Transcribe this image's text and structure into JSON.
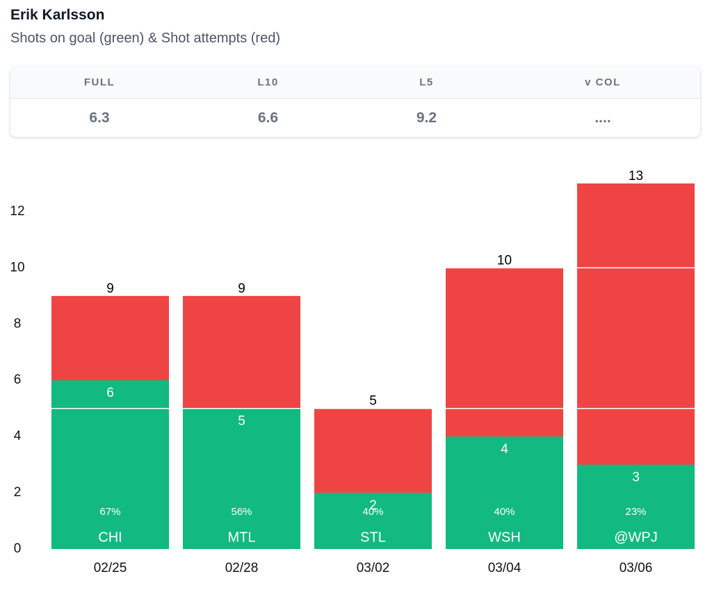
{
  "header": {
    "title": "Erik Karlsson",
    "subtitle": "Shots on goal (green) & Shot attempts (red)"
  },
  "stats": {
    "columns": [
      "FULL",
      "L10",
      "L5",
      "v COL"
    ],
    "values": [
      "6.3",
      "6.6",
      "9.2",
      "...."
    ]
  },
  "chart_data": {
    "type": "bar",
    "categories": [
      "02/25",
      "02/28",
      "03/02",
      "03/04",
      "03/06"
    ],
    "opponents": [
      "CHI",
      "MTL",
      "STL",
      "WSH",
      "@WPJ"
    ],
    "attempts": {
      "color": "#ef4444",
      "values": [
        9,
        9,
        5,
        10,
        13
      ]
    },
    "shots": {
      "color": "#12b981",
      "values": [
        6,
        5,
        2,
        4,
        3
      ]
    },
    "shot_pct": {
      "values": [
        67,
        56,
        40,
        40,
        23
      ],
      "value_labels": [
        "67%",
        "56%",
        "40%",
        "40%",
        "23%"
      ]
    },
    "ref_lines": [
      5,
      10
    ],
    "ylim": [
      0,
      13
    ],
    "yticks": [
      0,
      2,
      4,
      6,
      8,
      10,
      12
    ]
  }
}
